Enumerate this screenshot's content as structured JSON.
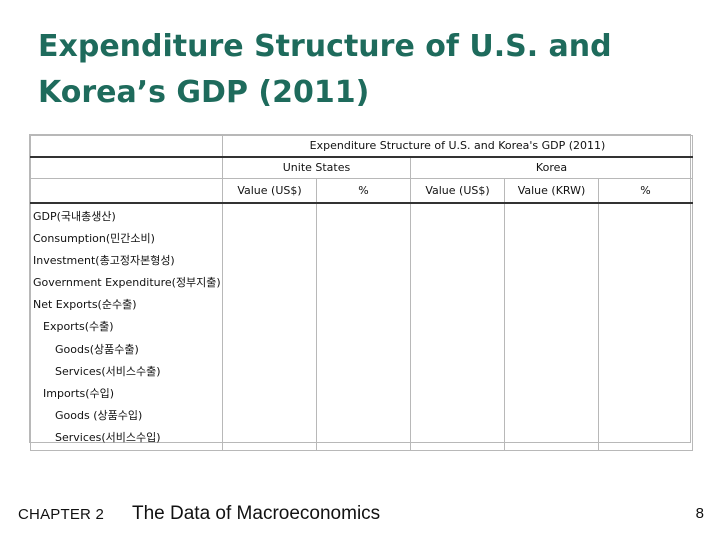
{
  "slide": {
    "title_line1": "Expenditure Structure of U.S. and",
    "title_line2": "Korea’s GDP (2011)"
  },
  "table": {
    "caption": "Expenditure Structure of U.S. and Korea's GDP (2011)",
    "groups": {
      "us": "Unite States",
      "korea": "Korea"
    },
    "subheaders": {
      "us_value": "Value (US$)",
      "us_percent": "%",
      "kr_value_usd": "Value (US$)",
      "kr_value_krw": "Value (KRW)",
      "kr_percent": "%"
    },
    "rows": [
      "GDP(국내총생산)",
      "Consumption(민간소비)",
      "Investment(총고정자본형성)",
      "Government Expenditure(정부지출)",
      "Net Exports(순수출)",
      "Exports(수출)",
      "Goods(상품수출)",
      "Services(서비스수출)",
      "Imports(수입)",
      "Goods (상품수입)",
      "Services(서비스수입)"
    ]
  },
  "footer": {
    "chapter": "CHAPTER 2",
    "title": "The Data of Macroeconomics",
    "page": "8"
  }
}
